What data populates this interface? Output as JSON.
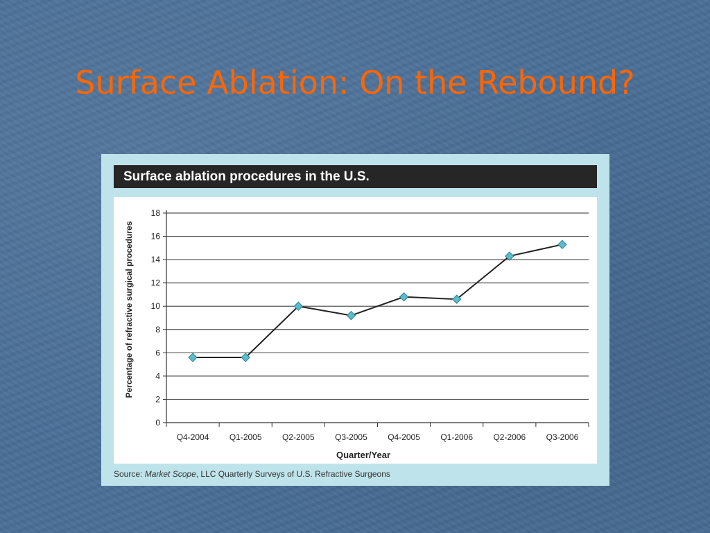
{
  "slide": {
    "title": "Surface Ablation: On the Rebound?",
    "title_color": "#ff6600",
    "background_color": "#4a6f98"
  },
  "figure": {
    "header": "Surface ablation procedures in the U.S.",
    "source_prefix": "Source: ",
    "source_italic": "Market Scope",
    "source_suffix": ", LLC Quarterly Surveys of U.S. Refractive Surgeons",
    "panel_bg": "#bfe3ea",
    "header_bg": "#262626"
  },
  "chart_data": {
    "type": "line",
    "categories": [
      "Q4-2004",
      "Q1-2005",
      "Q2-2005",
      "Q3-2005",
      "Q4-2005",
      "Q1-2006",
      "Q2-2006",
      "Q3-2006"
    ],
    "values": [
      5.6,
      5.6,
      10.0,
      9.2,
      10.8,
      10.6,
      14.3,
      15.3
    ],
    "title": "Surface ablation procedures in the U.S.",
    "xlabel": "Quarter/Year",
    "ylabel": "Percentage of refractive surgical procedures",
    "ylim": [
      0,
      18
    ],
    "yticks": [
      0,
      2,
      4,
      6,
      8,
      10,
      12,
      14,
      16,
      18
    ],
    "grid": true,
    "line_color": "#222222",
    "marker_color": "#5bbccc"
  }
}
